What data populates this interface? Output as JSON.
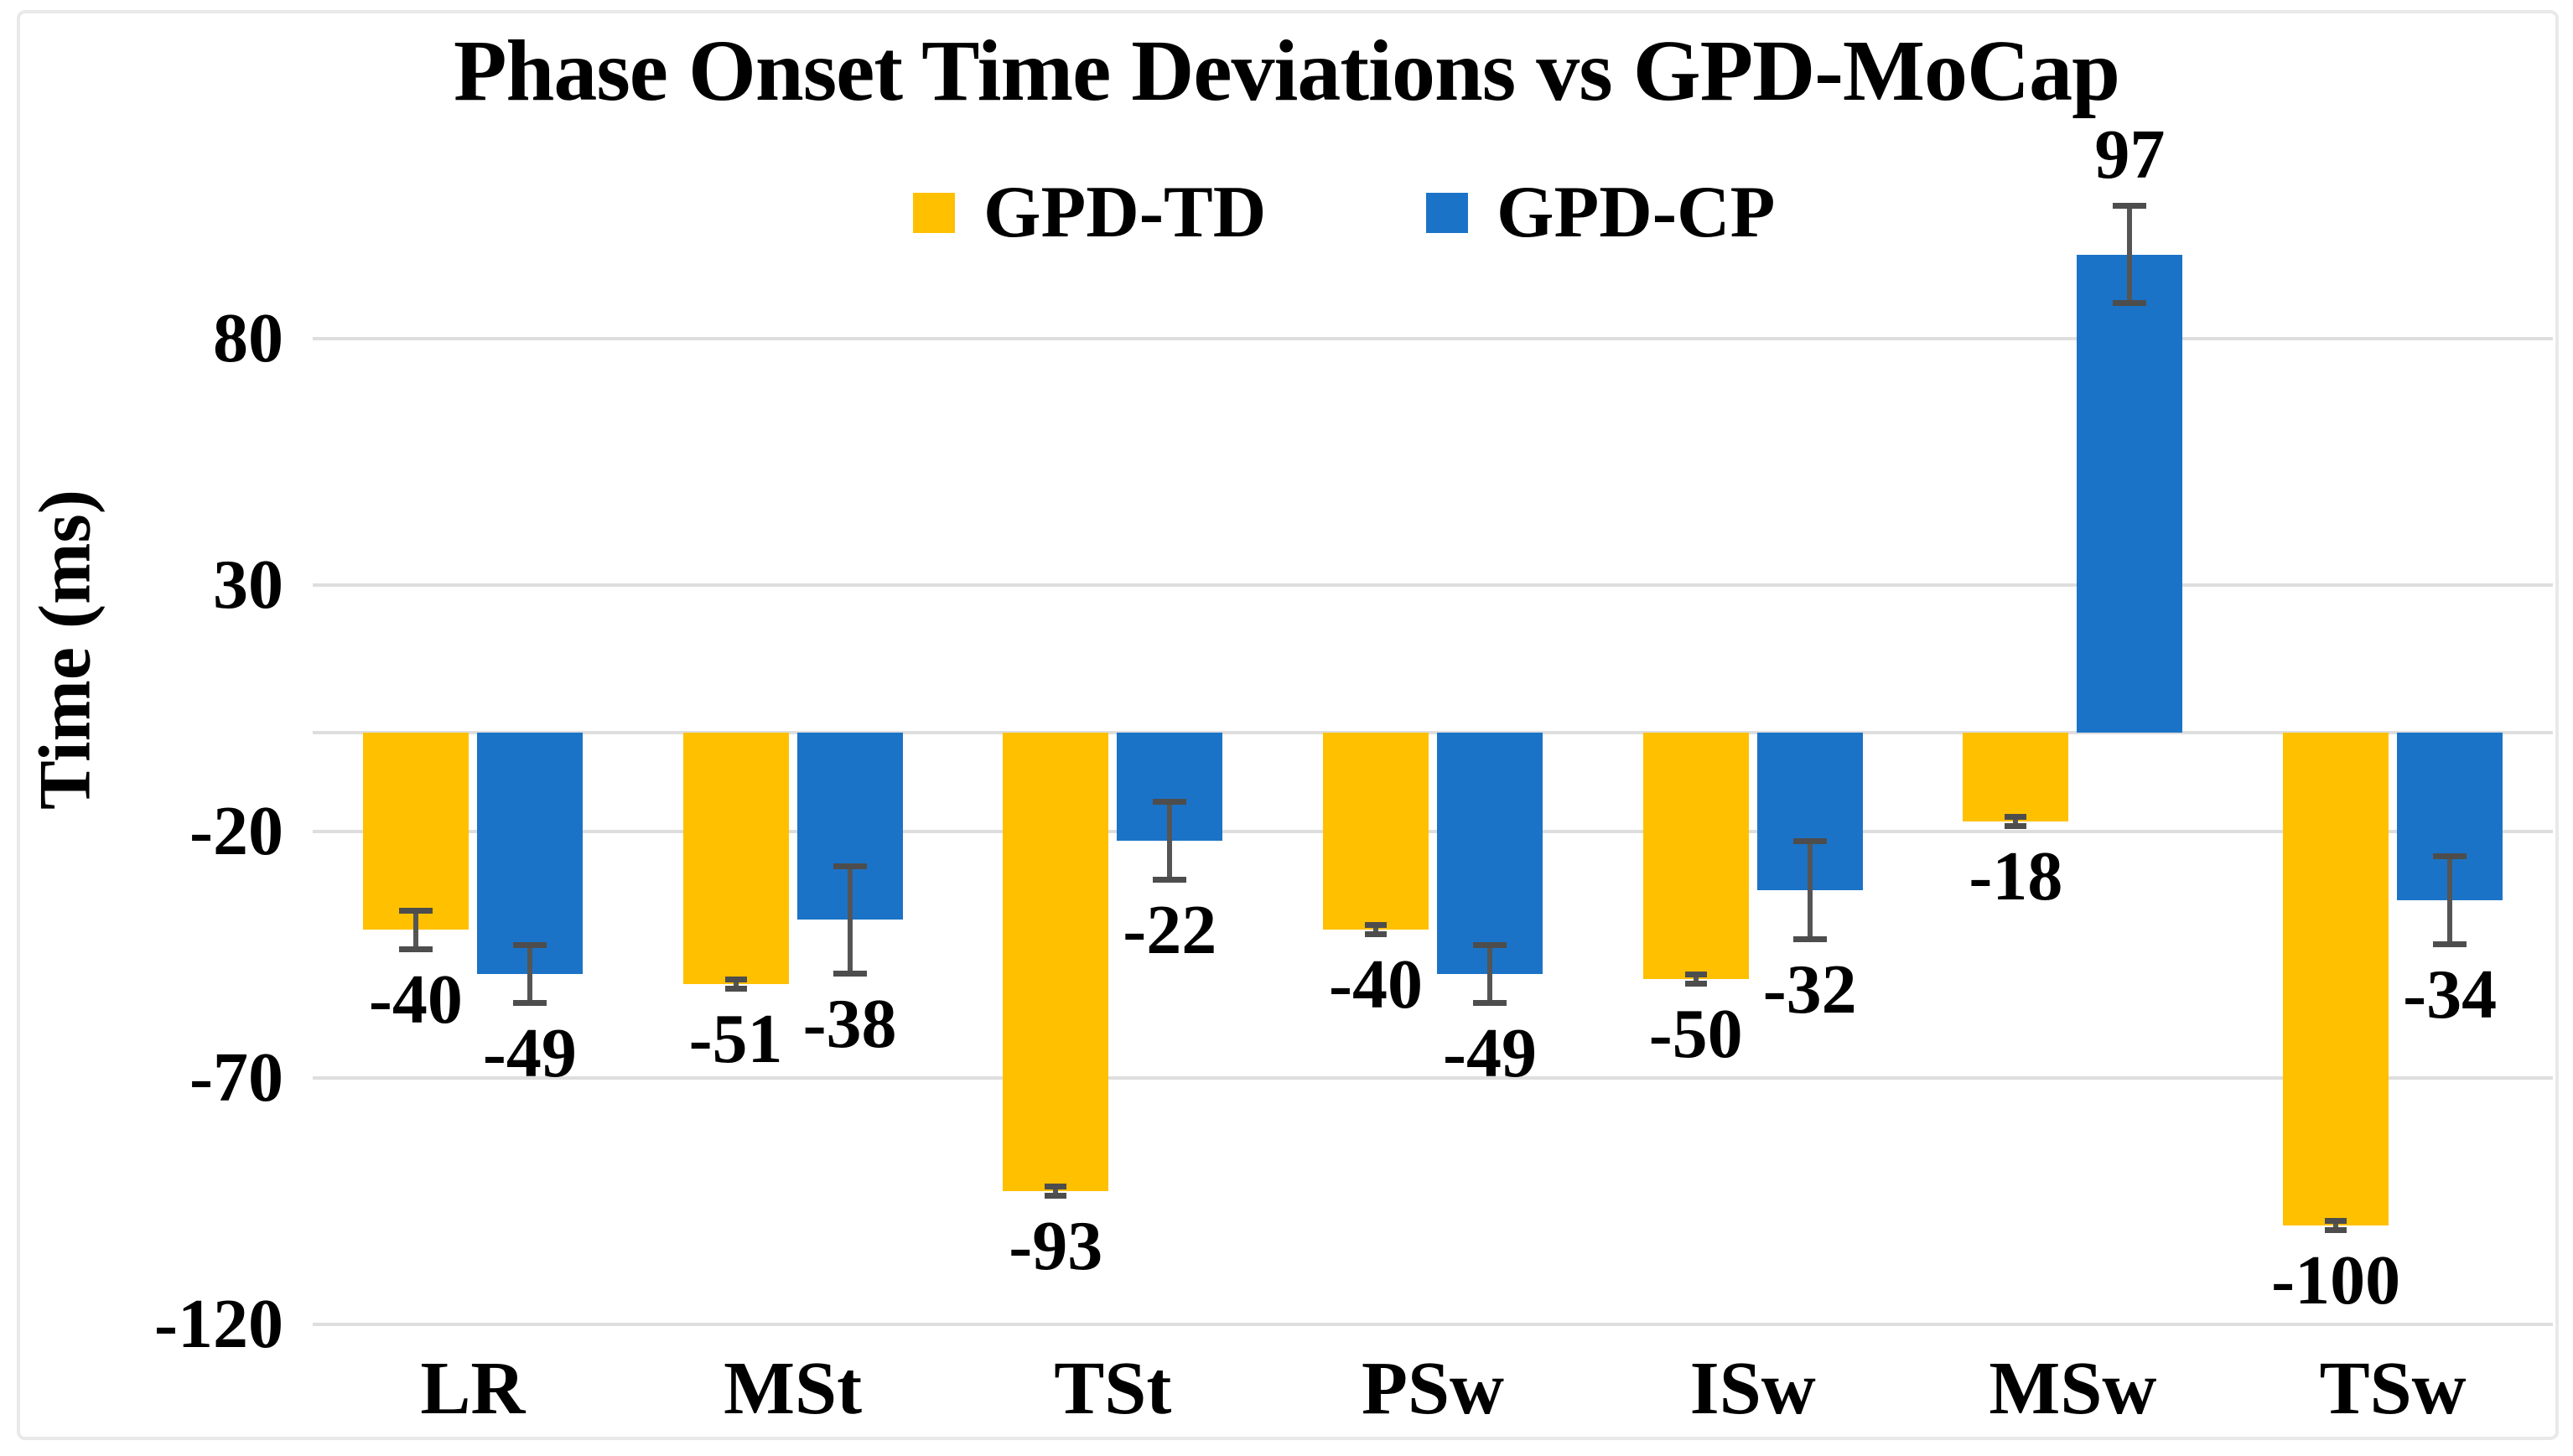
{
  "title": "Phase Onset Time Deviations vs GPD-MoCap",
  "legend": [
    {
      "label": "GPD-TD",
      "color": "#FFC000"
    },
    {
      "label": "GPD-CP",
      "color": "#1B73C7"
    }
  ],
  "y_axis": {
    "label": "Time (ms)",
    "ticks": [
      80,
      30,
      -20,
      -70,
      -120
    ]
  },
  "chart_data": {
    "type": "bar",
    "title": "Phase Onset Time Deviations vs GPD-MoCap",
    "categories": [
      "LR",
      "MSt",
      "TSt",
      "PSw",
      "ISw",
      "MSw",
      "TSw"
    ],
    "series": [
      {
        "name": "GPD-TD",
        "color": "#FFC000",
        "values": [
          -40,
          -51,
          -93,
          -40,
          -50,
          -18,
          -100
        ],
        "errors": [
          4,
          1,
          1,
          1,
          1,
          1,
          1
        ]
      },
      {
        "name": "GPD-CP",
        "color": "#1B73C7",
        "values": [
          -49,
          -38,
          -22,
          -49,
          -32,
          97,
          -34
        ],
        "errors": [
          6,
          11,
          8,
          6,
          10,
          10,
          9
        ]
      }
    ],
    "xlabel": "",
    "ylabel": "Time (ms)",
    "ylim": [
      -135,
      110
    ],
    "yticks": [
      80,
      30,
      -20,
      -70,
      -120
    ],
    "grid": "horizontal",
    "legend_position": "top-center",
    "error_bar_color": "#555555",
    "gridline_color": "#dedede"
  }
}
